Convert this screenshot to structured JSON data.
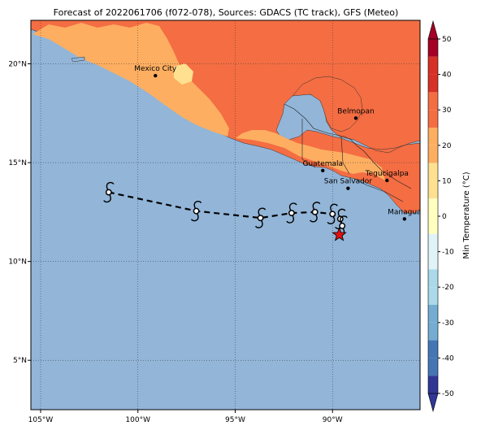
{
  "title": "Forecast of 2022061706 (f072-078), Sources: GDACS (TC track), GFS (Meteo)",
  "map": {
    "lon_range": [
      -105.5,
      -85.5
    ],
    "lat_range": [
      2.5,
      22.2
    ],
    "x_ticks": [
      {
        "value": -105,
        "label": "105°W"
      },
      {
        "value": -100,
        "label": "100°W"
      },
      {
        "value": -95,
        "label": "95°W"
      },
      {
        "value": -90,
        "label": "90°W"
      }
    ],
    "y_ticks": [
      {
        "value": 5,
        "label": "5°N"
      },
      {
        "value": 10,
        "label": "10°N"
      },
      {
        "value": 15,
        "label": "15°N"
      },
      {
        "value": 20,
        "label": "20°N"
      }
    ],
    "gridlines": true,
    "ocean_color": "#92b5d8"
  },
  "cities": [
    {
      "name": "Mexico City",
      "lon": -99.1,
      "lat": 19.4
    },
    {
      "name": "Belmopan",
      "lon": -88.8,
      "lat": 17.25
    },
    {
      "name": "Guatemala",
      "lon": -90.5,
      "lat": 14.6
    },
    {
      "name": "San Salvador",
      "lon": -89.2,
      "lat": 13.7
    },
    {
      "name": "Tegucigalpa",
      "lon": -87.2,
      "lat": 14.1
    },
    {
      "name": "Managua",
      "lon": -86.3,
      "lat": 12.15
    }
  ],
  "track": [
    {
      "lon": -101.5,
      "lat": 13.5
    },
    {
      "lon": -97.0,
      "lat": 12.55
    },
    {
      "lon": -93.7,
      "lat": 12.2
    },
    {
      "lon": -92.1,
      "lat": 12.45
    },
    {
      "lon": -90.9,
      "lat": 12.5
    },
    {
      "lon": -90.0,
      "lat": 12.4
    },
    {
      "lon": -89.6,
      "lat": 12.15
    },
    {
      "lon": -89.5,
      "lat": 11.8
    }
  ],
  "current_position": {
    "lon": -89.65,
    "lat": 11.35,
    "marker": "red-star-icon"
  },
  "colorbar": {
    "label": "Min Temperature (°C)",
    "ticks": [
      -50,
      -40,
      -30,
      -20,
      -10,
      0,
      10,
      20,
      30,
      40,
      50
    ],
    "colors": [
      "#313695",
      "#4575b4",
      "#74add1",
      "#abd9e9",
      "#e0f3f8",
      "#ffffbf",
      "#fee090",
      "#fdae61",
      "#f46d43",
      "#d73027",
      "#a50026"
    ]
  },
  "temperature_colors": {
    "warm": "#f46d43",
    "mild": "#fdae61",
    "cool": "#fee090",
    "cold": "#ffffbf"
  }
}
